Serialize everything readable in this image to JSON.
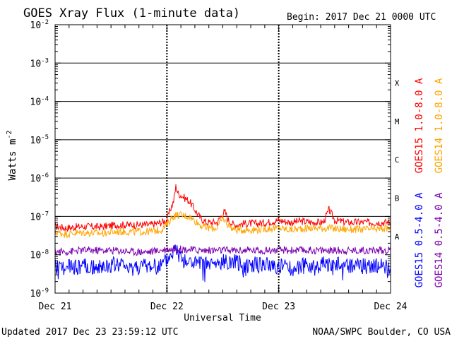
{
  "chart_data": {
    "type": "line",
    "title": "GOES Xray Flux (1-minute data)",
    "begin_label": "Begin:  2017 Dec 21 0000 UTC",
    "xlabel": "Universal Time",
    "ylabel": "Watts m",
    "ylabel_sup": "-2",
    "y_scale": "log",
    "ylim": [
      1e-09,
      0.01
    ],
    "xlim_days": [
      0,
      3
    ],
    "x_ticks": [
      "Dec 21",
      "Dec 22",
      "Dec 23",
      "Dec 24"
    ],
    "y_ticks": [
      {
        "value": 1e-09,
        "base": "10",
        "exp": "-9"
      },
      {
        "value": 1e-08,
        "base": "10",
        "exp": "-8"
      },
      {
        "value": 1e-07,
        "base": "10",
        "exp": "-7"
      },
      {
        "value": 1e-06,
        "base": "10",
        "exp": "-6"
      },
      {
        "value": 1e-05,
        "base": "10",
        "exp": "-5"
      },
      {
        "value": 0.0001,
        "base": "10",
        "exp": "-4"
      },
      {
        "value": 0.001,
        "base": "10",
        "exp": "-3"
      },
      {
        "value": 0.01,
        "base": "10",
        "exp": "-2"
      }
    ],
    "flare_classes": [
      {
        "label": "A",
        "value": 3e-08
      },
      {
        "label": "B",
        "value": 3e-07
      },
      {
        "label": "C",
        "value": 3e-06
      },
      {
        "label": "M",
        "value": 3e-05
      },
      {
        "label": "X",
        "value": 0.0003
      }
    ],
    "threshold_lines": [
      1e-07,
      1e-06,
      1e-05,
      0.0001,
      0.001
    ],
    "legend_placement": "right-vertical",
    "grid": "dashed verticals at day boundaries",
    "series": [
      {
        "name": "GOES15 1.0-8.0 A",
        "color": "#ff0000",
        "x": [
          0,
          0.1,
          0.25,
          0.4,
          0.55,
          0.7,
          0.85,
          0.95,
          1.0,
          1.03,
          1.06,
          1.08,
          1.1,
          1.13,
          1.16,
          1.2,
          1.25,
          1.3,
          1.35,
          1.45,
          1.5,
          1.52,
          1.55,
          1.6,
          1.7,
          1.8,
          1.9,
          2.0,
          2.1,
          2.2,
          2.3,
          2.4,
          2.45,
          2.5,
          2.6,
          2.7,
          2.8,
          2.9,
          3.0
        ],
        "y": [
          5.5e-08,
          5e-08,
          5.5e-08,
          5.3e-08,
          6e-08,
          6e-08,
          6e-08,
          7e-08,
          8e-08,
          1.5e-07,
          2.5e-07,
          6e-07,
          4e-07,
          3.5e-07,
          3e-07,
          2.5e-07,
          1.5e-07,
          9e-08,
          7e-08,
          7e-08,
          1.2e-07,
          1.3e-07,
          8e-08,
          6e-08,
          6.5e-08,
          6.5e-08,
          7e-08,
          8e-08,
          7e-08,
          7.5e-08,
          7e-08,
          7e-08,
          1.5e-07,
          8e-08,
          7e-08,
          7e-08,
          7e-08,
          7e-08,
          7e-08
        ]
      },
      {
        "name": "GOES14 1.0-8.0 A",
        "color": "#ffa500",
        "x": [
          0,
          0.1,
          0.25,
          0.4,
          0.55,
          0.7,
          0.85,
          0.95,
          1.0,
          1.05,
          1.1,
          1.2,
          1.3,
          1.35,
          1.45,
          1.5,
          1.55,
          1.6,
          1.7,
          1.8,
          1.9,
          2.0,
          2.1,
          2.2,
          2.3,
          2.4,
          2.5,
          2.6,
          2.7,
          2.8,
          2.9,
          3.0
        ],
        "y": [
          3.8e-08,
          3.5e-08,
          3.8e-08,
          3.6e-08,
          4e-08,
          4e-08,
          4e-08,
          4.5e-08,
          6e-08,
          1e-07,
          1.1e-07,
          1e-07,
          6e-08,
          5e-08,
          5e-08,
          9e-08,
          6e-08,
          4.5e-08,
          4.5e-08,
          4.5e-08,
          4.8e-08,
          5e-08,
          4.5e-08,
          4.8e-08,
          5e-08,
          5e-08,
          4.8e-08,
          4.6e-08,
          4.6e-08,
          4.6e-08,
          4.6e-08,
          5e-08
        ]
      },
      {
        "name": "GOES15 0.5-4.0 A",
        "color": "#0000ff",
        "x": [
          0,
          0.1,
          0.25,
          0.4,
          0.55,
          0.7,
          0.85,
          0.95,
          1.0,
          1.08,
          1.15,
          1.3,
          1.45,
          1.55,
          1.7,
          1.85,
          2.0,
          2.15,
          2.3,
          2.45,
          2.6,
          2.75,
          2.9,
          3.0
        ],
        "y": [
          5e-09,
          4.5e-09,
          5e-09,
          4.5e-09,
          5.5e-09,
          5e-09,
          5e-09,
          5e-09,
          7e-09,
          1.5e-08,
          7e-09,
          5.5e-09,
          5.5e-09,
          7e-09,
          5.5e-09,
          5.5e-09,
          5e-09,
          5e-09,
          5e-09,
          6e-09,
          5e-09,
          5e-09,
          5e-09,
          4.5e-09
        ]
      },
      {
        "name": "GOES14 0.5-4.0 A",
        "color": "#7b00b0",
        "x": [
          0,
          0.1,
          0.25,
          0.4,
          0.55,
          0.7,
          0.85,
          1.0,
          1.15,
          1.3,
          1.45,
          1.6,
          1.75,
          1.9,
          2.05,
          2.2,
          2.35,
          2.5,
          2.65,
          2.8,
          2.95,
          3.0
        ],
        "y": [
          1.2e-08,
          1.2e-08,
          1.3e-08,
          1.3e-08,
          1.3e-08,
          1.2e-08,
          1.2e-08,
          1.4e-08,
          1.4e-08,
          1.3e-08,
          1.3e-08,
          1.3e-08,
          1.3e-08,
          1.3e-08,
          1.3e-08,
          1.3e-08,
          1.3e-08,
          1.3e-08,
          1.3e-08,
          1.3e-08,
          1.3e-08,
          1.3e-08
        ]
      }
    ]
  },
  "footer": {
    "updated": "Updated 2017 Dec 23 23:59:12 UTC",
    "credit": "NOAA/SWPC Boulder, CO USA"
  }
}
